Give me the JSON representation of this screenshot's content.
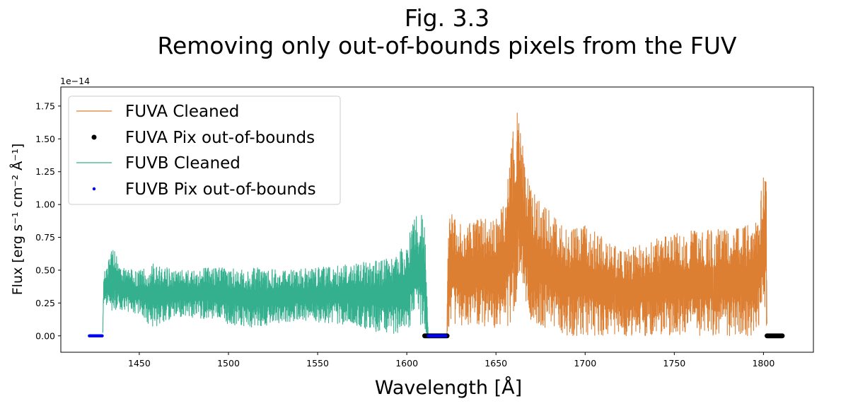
{
  "chart_data": {
    "type": "line",
    "title": "Fig. 3.3",
    "subtitle": "Removing only out-of-bounds pixels from the FUV",
    "xlabel": "Wavelength [Å]",
    "ylabel": "Flux [erg s⁻¹ cm⁻² Å⁻¹]",
    "y_offset_label": "1e−14",
    "xlim": [
      1406,
      1828
    ],
    "ylim": [
      -0.125,
      1.895
    ],
    "x_ticks": [
      1450,
      1500,
      1550,
      1600,
      1650,
      1700,
      1750,
      1800
    ],
    "y_ticks": [
      0.0,
      0.25,
      0.5,
      0.75,
      1.0,
      1.25,
      1.5,
      1.75
    ],
    "x_tick_labels": [
      "1450",
      "1500",
      "1550",
      "1600",
      "1650",
      "1700",
      "1750",
      "1800"
    ],
    "y_tick_labels": [
      "0.00",
      "0.25",
      "0.50",
      "0.75",
      "1.00",
      "1.25",
      "1.50",
      "1.75"
    ],
    "legend_position": "upper-left",
    "grid": false,
    "series": [
      {
        "name": "FUVA Cleaned",
        "kind": "line",
        "color": "#dd7f33",
        "x_range": [
          1622.5,
          1802
        ],
        "envelope": [
          [
            1622.5,
            0.0,
            0.0
          ],
          [
            1623.0,
            0.05,
            0.7
          ],
          [
            1624,
            0.08,
            0.97
          ],
          [
            1630,
            0.08,
            0.85
          ],
          [
            1640,
            0.08,
            0.9
          ],
          [
            1650,
            0.05,
            0.9
          ],
          [
            1655,
            0.05,
            1.05
          ],
          [
            1658,
            0.1,
            1.35
          ],
          [
            1660,
            0.15,
            1.62
          ],
          [
            1662,
            0.25,
            1.7
          ],
          [
            1663,
            0.35,
            1.86
          ],
          [
            1664,
            0.4,
            1.6
          ],
          [
            1666,
            0.2,
            1.3
          ],
          [
            1670,
            0.1,
            1.1
          ],
          [
            1680,
            0.05,
            0.95
          ],
          [
            1690,
            0.0,
            0.8
          ],
          [
            1700,
            0.0,
            0.85
          ],
          [
            1720,
            0.0,
            0.65
          ],
          [
            1740,
            0.0,
            0.75
          ],
          [
            1760,
            0.0,
            0.8
          ],
          [
            1780,
            0.0,
            0.82
          ],
          [
            1795,
            0.0,
            0.85
          ],
          [
            1798,
            0.05,
            1.02
          ],
          [
            1800,
            0.1,
            1.36
          ],
          [
            1801.5,
            0.1,
            1.41
          ],
          [
            1802,
            0.0,
            0.0
          ]
        ]
      },
      {
        "name": "FUVA Pix out-of-bounds",
        "kind": "scatter",
        "color": "#000000",
        "x_ranges": [
          [
            1610,
            1623
          ],
          [
            1802,
            1811
          ]
        ],
        "y_value": 0.0
      },
      {
        "name": "FUVB Cleaned",
        "kind": "line",
        "color": "#35b08e",
        "x_range": [
          1429.5,
          1612
        ],
        "envelope": [
          [
            1429.5,
            0.0,
            0.0
          ],
          [
            1430,
            0.25,
            0.48
          ],
          [
            1435,
            0.18,
            0.68
          ],
          [
            1440,
            0.2,
            0.52
          ],
          [
            1450,
            0.15,
            0.5
          ],
          [
            1458,
            0.05,
            0.55
          ],
          [
            1470,
            0.15,
            0.5
          ],
          [
            1490,
            0.12,
            0.52
          ],
          [
            1515,
            0.05,
            0.52
          ],
          [
            1530,
            0.1,
            0.5
          ],
          [
            1550,
            0.1,
            0.52
          ],
          [
            1570,
            0.08,
            0.55
          ],
          [
            1590,
            0.0,
            0.6
          ],
          [
            1600,
            0.05,
            0.7
          ],
          [
            1605,
            0.1,
            0.96
          ],
          [
            1610,
            0.0,
            0.9
          ],
          [
            1612,
            0.0,
            0.0
          ]
        ]
      },
      {
        "name": "FUVB Pix out-of-bounds",
        "kind": "scatter",
        "color": "#0000ff",
        "x_ranges": [
          [
            1422,
            1429.5
          ],
          [
            1612,
            1622
          ]
        ],
        "y_value": 0.0
      }
    ]
  }
}
